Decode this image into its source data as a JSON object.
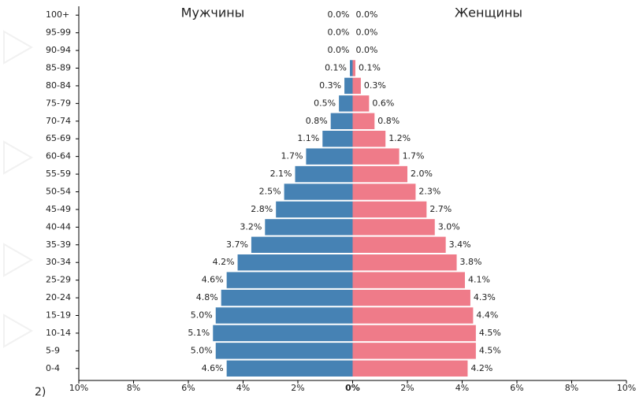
{
  "chart_data": {
    "type": "pyramid",
    "annotation": "2)",
    "categories": [
      "100+",
      "95-99",
      "90-94",
      "85-89",
      "80-84",
      "75-79",
      "70-74",
      "65-69",
      "60-64",
      "55-59",
      "50-54",
      "45-49",
      "40-44",
      "35-39",
      "30-34",
      "25-29",
      "20-24",
      "15-19",
      "10-14",
      "5-9",
      "0-4"
    ],
    "series": [
      {
        "name": "Мужчины",
        "color": "#4682b4",
        "side": "left",
        "values": [
          0.0,
          0.0,
          0.0,
          0.1,
          0.3,
          0.5,
          0.8,
          1.1,
          1.7,
          2.1,
          2.5,
          2.8,
          3.2,
          3.7,
          4.2,
          4.6,
          4.8,
          5.0,
          5.1,
          5.0,
          4.6
        ],
        "value_labels": [
          "0.0%",
          "0.0%",
          "0.0%",
          "0.1%",
          "0.3%",
          "0.5%",
          "0.8%",
          "1.1%",
          "1.7%",
          "2.1%",
          "2.5%",
          "2.8%",
          "3.2%",
          "3.7%",
          "4.2%",
          "4.6%",
          "4.8%",
          "5.0%",
          "5.1%",
          "5.0%",
          "4.6%"
        ]
      },
      {
        "name": "Женщины",
        "color": "#ef7b89",
        "side": "right",
        "values": [
          0.0,
          0.0,
          0.0,
          0.1,
          0.3,
          0.6,
          0.8,
          1.2,
          1.7,
          2.0,
          2.3,
          2.7,
          3.0,
          3.4,
          3.8,
          4.1,
          4.3,
          4.4,
          4.5,
          4.5,
          4.2
        ],
        "value_labels": [
          "0.0%",
          "0.0%",
          "0.0%",
          "0.1%",
          "0.3%",
          "0.6%",
          "0.8%",
          "1.2%",
          "1.7%",
          "2.0%",
          "2.3%",
          "2.7%",
          "3.0%",
          "3.4%",
          "3.8%",
          "4.1%",
          "4.3%",
          "4.4%",
          "4.5%",
          "4.5%",
          "4.2%"
        ]
      }
    ],
    "xlim": [
      -10,
      10
    ],
    "xticks": [
      {
        "value": -10,
        "label": "10%"
      },
      {
        "value": -8,
        "label": "8%"
      },
      {
        "value": -6,
        "label": "6%"
      },
      {
        "value": -4,
        "label": "4%"
      },
      {
        "value": -2,
        "label": "2%"
      },
      {
        "value": 0,
        "label": "0%"
      },
      {
        "value": 2,
        "label": "2%"
      },
      {
        "value": 4,
        "label": "4%"
      },
      {
        "value": 6,
        "label": "6%"
      },
      {
        "value": 8,
        "label": "8%"
      },
      {
        "value": 10,
        "label": "10%"
      }
    ]
  }
}
